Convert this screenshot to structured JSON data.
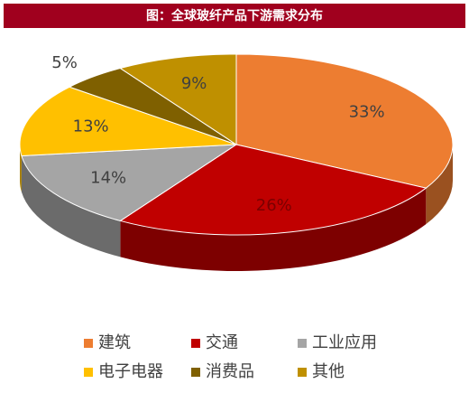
{
  "chart_data": {
    "type": "pie",
    "title": "图：全球玻纤产品下游需求分布",
    "categories": [
      "建筑",
      "交通",
      "工业应用",
      "电子电器",
      "消费品",
      "其他"
    ],
    "values": [
      33,
      26,
      14,
      13,
      5,
      9
    ],
    "value_labels": [
      "33%",
      "26%",
      "14%",
      "13%",
      "5%",
      "9%"
    ],
    "colors": [
      "#ED7D31",
      "#C00000",
      "#A5A5A5",
      "#FFC000",
      "#7F6000",
      "#BF9000"
    ],
    "legend": "bottom"
  }
}
